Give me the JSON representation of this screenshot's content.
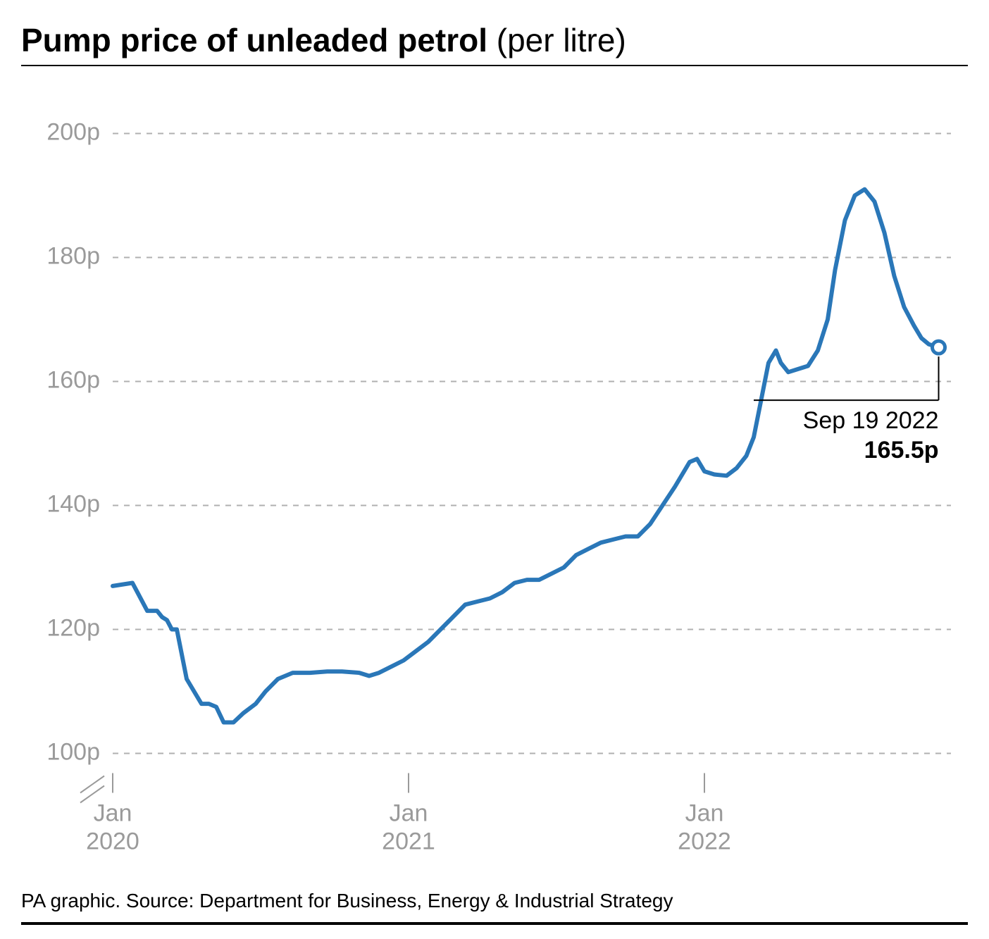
{
  "title": {
    "bold": "Pump price of unleaded petrol",
    "light": "(per litre)"
  },
  "chart": {
    "type": "line",
    "background_color": "#ffffff",
    "grid_color": "#b0b0b0",
    "grid_dash": "8 8",
    "axis_label_color": "#9a9a9a",
    "axis_fontsize": 34,
    "line_color": "#2a77b8",
    "line_width": 6,
    "baseline_color": "#000000",
    "ylim": [
      100,
      200
    ],
    "ytick_step": 20,
    "ytick_labels": [
      "100p",
      "120p",
      "140p",
      "160p",
      "180p",
      "200p"
    ],
    "xlim_months": [
      0,
      34
    ],
    "xtick_positions": [
      0,
      12,
      24
    ],
    "xtick_labels": [
      {
        "month": "Jan",
        "year": "2020"
      },
      {
        "month": "Jan",
        "year": "2021"
      },
      {
        "month": "Jan",
        "year": "2022"
      }
    ],
    "series": [
      {
        "m": 0.0,
        "v": 127
      },
      {
        "m": 0.8,
        "v": 127.5
      },
      {
        "m": 1.0,
        "v": 126
      },
      {
        "m": 1.4,
        "v": 123
      },
      {
        "m": 1.8,
        "v": 123
      },
      {
        "m": 2.0,
        "v": 122
      },
      {
        "m": 2.2,
        "v": 121.5
      },
      {
        "m": 2.4,
        "v": 120
      },
      {
        "m": 2.6,
        "v": 120
      },
      {
        "m": 3.0,
        "v": 112
      },
      {
        "m": 3.3,
        "v": 110
      },
      {
        "m": 3.6,
        "v": 108
      },
      {
        "m": 3.9,
        "v": 108
      },
      {
        "m": 4.2,
        "v": 107.5
      },
      {
        "m": 4.5,
        "v": 105
      },
      {
        "m": 4.9,
        "v": 105
      },
      {
        "m": 5.3,
        "v": 106.5
      },
      {
        "m": 5.8,
        "v": 108
      },
      {
        "m": 6.2,
        "v": 110
      },
      {
        "m": 6.7,
        "v": 112
      },
      {
        "m": 7.3,
        "v": 113
      },
      {
        "m": 8.0,
        "v": 113
      },
      {
        "m": 8.7,
        "v": 113.2
      },
      {
        "m": 9.3,
        "v": 113.2
      },
      {
        "m": 10.0,
        "v": 113
      },
      {
        "m": 10.4,
        "v": 112.5
      },
      {
        "m": 10.8,
        "v": 113
      },
      {
        "m": 11.3,
        "v": 114
      },
      {
        "m": 11.8,
        "v": 115
      },
      {
        "m": 12.3,
        "v": 116.5
      },
      {
        "m": 12.8,
        "v": 118
      },
      {
        "m": 13.3,
        "v": 120
      },
      {
        "m": 13.8,
        "v": 122
      },
      {
        "m": 14.3,
        "v": 124
      },
      {
        "m": 14.8,
        "v": 124.5
      },
      {
        "m": 15.3,
        "v": 125
      },
      {
        "m": 15.8,
        "v": 126
      },
      {
        "m": 16.3,
        "v": 127.5
      },
      {
        "m": 16.8,
        "v": 128
      },
      {
        "m": 17.3,
        "v": 128
      },
      {
        "m": 17.8,
        "v": 129
      },
      {
        "m": 18.3,
        "v": 130
      },
      {
        "m": 18.8,
        "v": 132
      },
      {
        "m": 19.3,
        "v": 133
      },
      {
        "m": 19.8,
        "v": 134
      },
      {
        "m": 20.3,
        "v": 134.5
      },
      {
        "m": 20.8,
        "v": 135
      },
      {
        "m": 21.3,
        "v": 135
      },
      {
        "m": 21.8,
        "v": 137
      },
      {
        "m": 22.3,
        "v": 140
      },
      {
        "m": 22.8,
        "v": 143
      },
      {
        "m": 23.1,
        "v": 145
      },
      {
        "m": 23.4,
        "v": 147
      },
      {
        "m": 23.7,
        "v": 147.5
      },
      {
        "m": 24.0,
        "v": 145.5
      },
      {
        "m": 24.4,
        "v": 145
      },
      {
        "m": 24.9,
        "v": 144.8
      },
      {
        "m": 25.3,
        "v": 146
      },
      {
        "m": 25.7,
        "v": 148
      },
      {
        "m": 26.0,
        "v": 151
      },
      {
        "m": 26.3,
        "v": 157
      },
      {
        "m": 26.6,
        "v": 163
      },
      {
        "m": 26.9,
        "v": 165
      },
      {
        "m": 27.1,
        "v": 163
      },
      {
        "m": 27.4,
        "v": 161.5
      },
      {
        "m": 27.8,
        "v": 162
      },
      {
        "m": 28.2,
        "v": 162.5
      },
      {
        "m": 28.6,
        "v": 165
      },
      {
        "m": 29.0,
        "v": 170
      },
      {
        "m": 29.3,
        "v": 178
      },
      {
        "m": 29.7,
        "v": 186
      },
      {
        "m": 30.1,
        "v": 190
      },
      {
        "m": 30.5,
        "v": 191
      },
      {
        "m": 30.9,
        "v": 189
      },
      {
        "m": 31.3,
        "v": 184
      },
      {
        "m": 31.7,
        "v": 177
      },
      {
        "m": 32.1,
        "v": 172
      },
      {
        "m": 32.5,
        "v": 169
      },
      {
        "m": 32.8,
        "v": 167
      },
      {
        "m": 33.1,
        "v": 166
      },
      {
        "m": 33.5,
        "v": 165.5
      }
    ],
    "end_marker": {
      "m": 33.5,
      "v": 165.5,
      "radius": 9,
      "fill": "#ffffff",
      "stroke": "#2a77b8",
      "stroke_width": 5
    },
    "callout": {
      "date": "Sep 19 2022",
      "value": "165.5p",
      "anchor_m": 33.5,
      "anchor_v": 165.5,
      "line_y_offset": 75,
      "line_x_start_m": 26.0
    },
    "axis_break": true
  },
  "footer": {
    "text": "PA graphic. Source: Department for Business, Energy & Industrial Strategy"
  }
}
